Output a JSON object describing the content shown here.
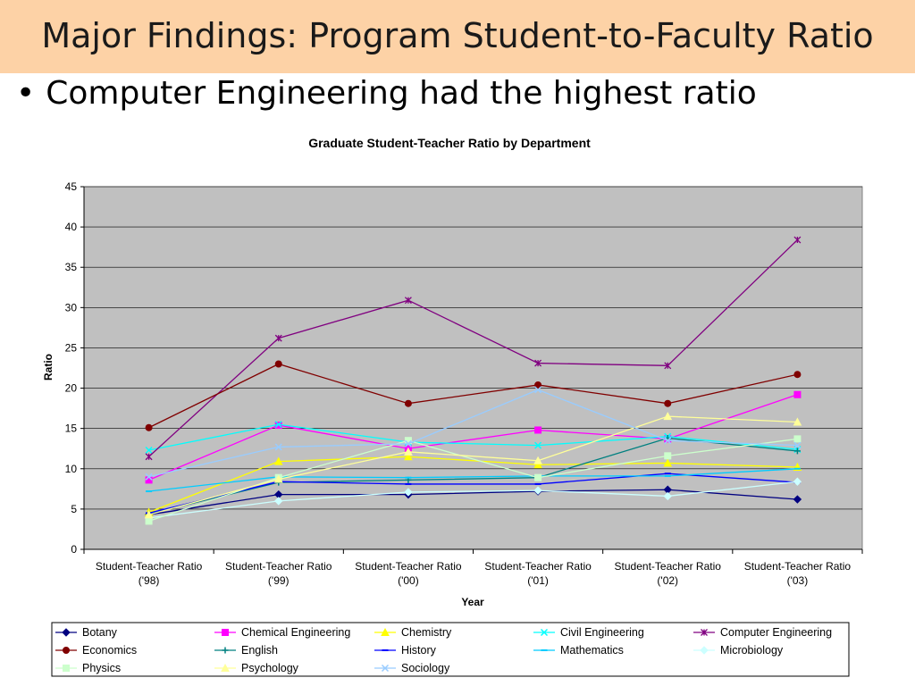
{
  "slide": {
    "title": "Major Findings: Program Student-to-Faculty Ratio",
    "bullet": "Computer Engineering had the highest ratio"
  },
  "chart_data": {
    "type": "line",
    "title": "Graduate Student-Teacher Ratio by Department",
    "xlabel": "Year",
    "ylabel": "Ratio",
    "ylim": [
      0,
      45
    ],
    "yticks": [
      0,
      5,
      10,
      15,
      20,
      25,
      30,
      35,
      40,
      45
    ],
    "grid": true,
    "legend_position": "bottom",
    "plot_background": "#c0c0c0",
    "categories": [
      [
        "Student-Teacher Ratio",
        "('98)"
      ],
      [
        "Student-Teacher Ratio",
        "('99)"
      ],
      [
        "Student-Teacher Ratio",
        "('00)"
      ],
      [
        "Student-Teacher Ratio",
        "('01)"
      ],
      [
        "Student-Teacher Ratio",
        "('02)"
      ],
      [
        "Student-Teacher Ratio",
        "('03)"
      ]
    ],
    "series": [
      {
        "name": "Botany",
        "color": "#000080",
        "marker": "diamond",
        "values": [
          4.3,
          6.8,
          6.8,
          7.2,
          7.4,
          6.2
        ]
      },
      {
        "name": "Chemical Engineering",
        "color": "#ff00ff",
        "marker": "square",
        "values": [
          8.6,
          15.4,
          12.5,
          14.8,
          13.7,
          19.2
        ]
      },
      {
        "name": "Chemistry",
        "color": "#ffff00",
        "marker": "triangle",
        "values": [
          4.6,
          10.9,
          11.5,
          10.5,
          10.7,
          10.2
        ]
      },
      {
        "name": "Civil Engineering",
        "color": "#00ffff",
        "marker": "x",
        "values": [
          12.3,
          15.5,
          13.3,
          12.9,
          14.0,
          12.4
        ]
      },
      {
        "name": "Computer Engineering",
        "color": "#800080",
        "marker": "star",
        "values": [
          11.5,
          26.2,
          30.9,
          23.1,
          22.8,
          38.4
        ]
      },
      {
        "name": "Economics",
        "color": "#800000",
        "marker": "circle",
        "values": [
          15.1,
          23.0,
          18.1,
          20.4,
          18.1,
          21.7
        ]
      },
      {
        "name": "English",
        "color": "#008080",
        "marker": "plus",
        "values": [
          4.4,
          8.3,
          8.6,
          8.9,
          13.8,
          12.2
        ]
      },
      {
        "name": "History",
        "color": "#0000ff",
        "marker": "dash",
        "values": [
          4.5,
          8.4,
          8.1,
          8.1,
          9.4,
          8.3
        ]
      },
      {
        "name": "Mathematics",
        "color": "#00ccff",
        "marker": "dash",
        "values": [
          7.2,
          9.0,
          8.9,
          9.1,
          9.1,
          10.0
        ]
      },
      {
        "name": "Microbiology",
        "color": "#ccffff",
        "marker": "diamond",
        "values": [
          3.9,
          6.0,
          7.1,
          7.3,
          6.6,
          8.4
        ]
      },
      {
        "name": "Physics",
        "color": "#ccffcc",
        "marker": "square",
        "values": [
          3.5,
          8.9,
          13.5,
          8.9,
          11.6,
          13.7
        ]
      },
      {
        "name": "Psychology",
        "color": "#ffff99",
        "marker": "triangle",
        "values": [
          4.3,
          8.7,
          12.1,
          11.0,
          16.5,
          15.8
        ]
      },
      {
        "name": "Sociology",
        "color": "#99ccff",
        "marker": "x",
        "values": [
          9.0,
          12.7,
          13.1,
          19.8,
          13.5,
          12.9
        ]
      }
    ]
  }
}
